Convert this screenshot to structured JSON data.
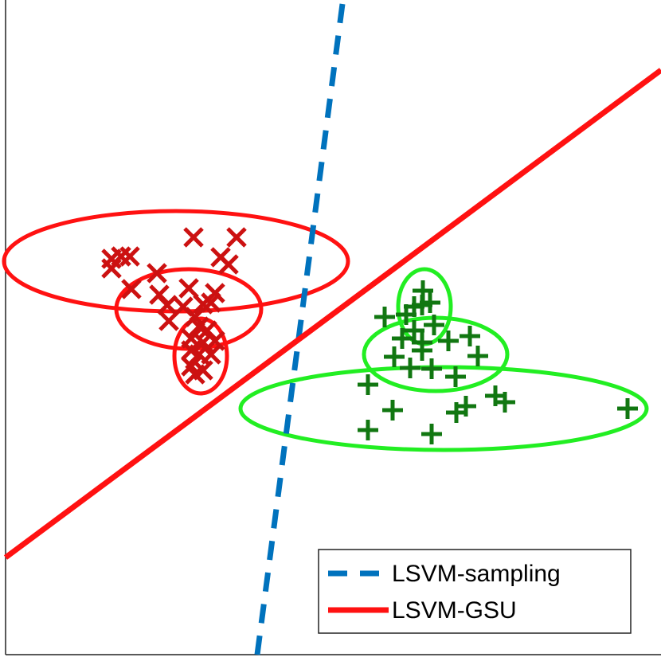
{
  "chart_data": {
    "type": "scatter",
    "xlim": [
      7,
      830
    ],
    "ylim": [
      8,
      830
    ],
    "points": [
      {
        "color": "#cc1111",
        "marker": "x",
        "x": [
          243,
          297,
          140,
          152,
          163,
          140,
          277,
          287,
          197,
          165,
          200,
          237,
          270,
          210,
          230,
          255,
          265,
          212,
          245,
          250,
          260,
          240,
          255,
          270,
          240,
          250,
          265,
          240,
          255,
          245
        ],
        "y": [
          532,
          532,
          505,
          508,
          508,
          493,
          507,
          498,
          487,
          467,
          460,
          468,
          462,
          447,
          445,
          448,
          450,
          427,
          432,
          420,
          415,
          405,
          400,
          402,
          390,
          385,
          385,
          370,
          365,
          360
        ]
      },
      {
        "color": "#117711",
        "marker": "+",
        "x": [
          531,
          520,
          530,
          540,
          483,
          510,
          545,
          520,
          530,
          563,
          590,
          600,
          495,
          515,
          542,
          572,
          462,
          622,
          634,
          585,
          573,
          493,
          462,
          542,
          788,
          530,
          505
        ],
        "y": [
          465,
          445,
          447,
          450,
          432,
          435,
          422,
          415,
          400,
          402,
          408,
          383,
          382,
          368,
          367,
          357,
          347,
          333,
          325,
          320,
          312,
          315,
          290,
          285,
          317,
          390,
          405
        ]
      }
    ],
    "ellipses": [
      {
        "color": "#ff1111",
        "cx": 221,
        "cy": 502,
        "rx": 216,
        "ry": 63
      },
      {
        "color": "#ff1111",
        "cx": 237,
        "cy": 442,
        "rx": 91,
        "ry": 50
      },
      {
        "color": "#ff1111",
        "cx": 252,
        "cy": 383,
        "rx": 33,
        "ry": 47
      },
      {
        "color": "#22ee22",
        "cx": 533,
        "cy": 445,
        "rx": 33,
        "ry": 47
      },
      {
        "color": "#22ee22",
        "cx": 547,
        "cy": 385,
        "rx": 90,
        "ry": 46
      },
      {
        "color": "#22ee22",
        "cx": 557,
        "cy": 317,
        "rx": 255,
        "ry": 52
      }
    ],
    "lines": [
      {
        "name": "LSVM-sampling",
        "color": "#0072bd",
        "dashed": true,
        "x": [
          430,
          323
        ],
        "values": [
          825,
          8
        ]
      },
      {
        "name": "LSVM-GSU",
        "color": "#ff1111",
        "dashed": false,
        "x": [
          7,
          830
        ],
        "values": [
          130,
          742
        ]
      }
    ]
  }
}
